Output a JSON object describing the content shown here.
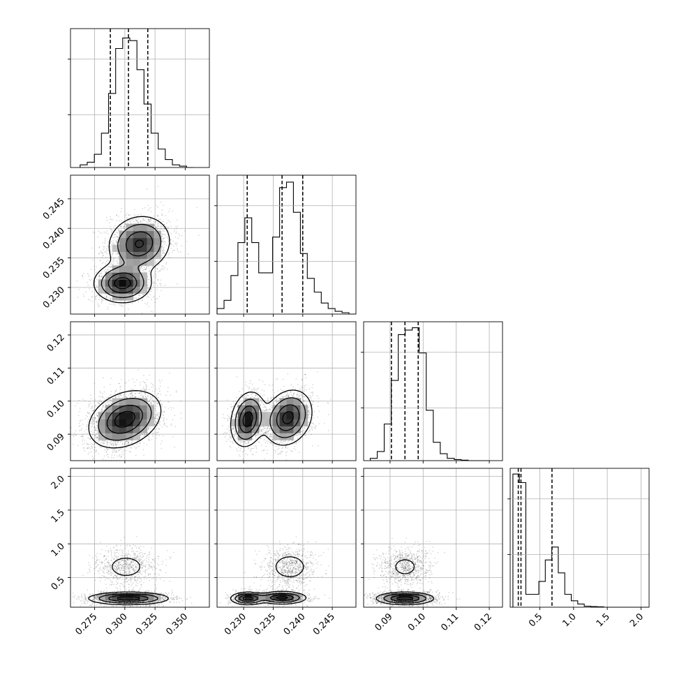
{
  "chart_data": {
    "type": "corner",
    "parameters": [
      {
        "range": [
          0.255,
          0.37
        ],
        "ticks": [
          0.275,
          0.3,
          0.325,
          0.35
        ],
        "tick_labels": [
          "0.275",
          "0.300",
          "0.325",
          "0.350"
        ]
      },
      {
        "range": [
          0.2255,
          0.249
        ],
        "ticks": [
          0.23,
          0.235,
          0.24,
          0.245
        ],
        "tick_labels": [
          "0.230",
          "0.235",
          "0.240",
          "0.245"
        ]
      },
      {
        "range": [
          0.082,
          0.124
        ],
        "ticks": [
          0.09,
          0.1,
          0.11,
          0.12
        ],
        "tick_labels": [
          "0.09",
          "0.10",
          "0.11",
          "0.12"
        ]
      },
      {
        "range": [
          0.06,
          2.12
        ],
        "ticks": [
          0.5,
          1.0,
          1.5,
          2.0
        ],
        "tick_labels": [
          "0.5",
          "1.0",
          "1.5",
          "2.0"
        ]
      }
    ],
    "histograms": [
      {
        "counts": [
          1,
          2,
          5,
          13,
          28,
          45,
          49,
          48,
          37,
          24,
          13,
          7,
          3,
          1,
          0.5,
          0
        ],
        "quantiles": [
          0.288,
          0.303,
          0.319
        ],
        "bin_range": [
          0.263,
          0.357
        ],
        "ymax": 52
      },
      {
        "counts": [
          2,
          5,
          14,
          26,
          35,
          26,
          15,
          15,
          28,
          46,
          48,
          37,
          22,
          13,
          8,
          4,
          2,
          1,
          0.5,
          0
        ],
        "quantiles": [
          0.2306,
          0.2365,
          0.24
        ],
        "bin_range": [
          0.2255,
          0.249
        ],
        "ymax": 50
      },
      {
        "counts": [
          1,
          4,
          16,
          35,
          55,
          57,
          58,
          47,
          22,
          8,
          3,
          1,
          0.5,
          0.2,
          0,
          0,
          0
        ],
        "quantiles": [
          0.0904,
          0.0945,
          0.0985
        ],
        "bin_range": [
          0.084,
          0.12
        ],
        "ymax": 60
      },
      {
        "counts": [
          62,
          58,
          6,
          6,
          12,
          22,
          28,
          16,
          6,
          3,
          1.5,
          0.5,
          0.3,
          0.2,
          0,
          0,
          0,
          0,
          0,
          0,
          0
        ],
        "quantiles": [
          0.18,
          0.22,
          0.68
        ],
        "bin_range": [
          0.1,
          2.12
        ],
        "ymax": 64
      }
    ],
    "bivariate": [
      {
        "x": 0,
        "y": 1,
        "modes": [
          {
            "cx": 0.298,
            "cy": 0.2307,
            "sx": 0.0115,
            "sy": 0.0016,
            "rho": 0,
            "w": 0.42
          },
          {
            "cx": 0.312,
            "cy": 0.2374,
            "sx": 0.0125,
            "sy": 0.0023,
            "rho": 0.1,
            "w": 0.58
          }
        ]
      },
      {
        "x": 0,
        "y": 2,
        "modes": [
          {
            "cx": 0.3,
            "cy": 0.0945,
            "sx": 0.0145,
            "sy": 0.0042,
            "rho": 0.3,
            "w": 1
          }
        ]
      },
      {
        "x": 1,
        "y": 2,
        "modes": [
          {
            "cx": 0.2307,
            "cy": 0.0945,
            "sx": 0.0014,
            "sy": 0.004,
            "rho": 0.2,
            "w": 0.42
          },
          {
            "cx": 0.2375,
            "cy": 0.095,
            "sx": 0.002,
            "sy": 0.0041,
            "rho": 0.2,
            "w": 0.58
          }
        ]
      },
      {
        "x": 0,
        "y": 3,
        "modes": [
          {
            "cx": 0.301,
            "cy": 0.66,
            "sx": 0.0125,
            "sy": 0.14,
            "rho": 0,
            "w": 0.3
          },
          {
            "cx": 0.303,
            "cy": 0.19,
            "sx": 0.016,
            "sy": 0.045,
            "rho": 0,
            "w": 0.7
          }
        ]
      },
      {
        "x": 1,
        "y": 3,
        "modes": [
          {
            "cx": 0.2378,
            "cy": 0.66,
            "sx": 0.0022,
            "sy": 0.14,
            "rho": 0,
            "w": 0.3
          },
          {
            "cx": 0.2307,
            "cy": 0.19,
            "sx": 0.0014,
            "sy": 0.045,
            "rho": 0,
            "w": 0.3
          },
          {
            "cx": 0.2365,
            "cy": 0.2,
            "sx": 0.002,
            "sy": 0.045,
            "rho": 0,
            "w": 0.4
          }
        ]
      },
      {
        "x": 2,
        "y": 3,
        "modes": [
          {
            "cx": 0.0945,
            "cy": 0.66,
            "sx": 0.0038,
            "sy": 0.14,
            "rho": 0,
            "w": 0.3
          },
          {
            "cx": 0.0945,
            "cy": 0.19,
            "sx": 0.0042,
            "sy": 0.045,
            "rho": 0,
            "w": 0.7
          }
        ]
      }
    ],
    "grid": true,
    "colors": {
      "line": "#000000",
      "grid": "#b0b0b0",
      "points": "#000000"
    }
  }
}
